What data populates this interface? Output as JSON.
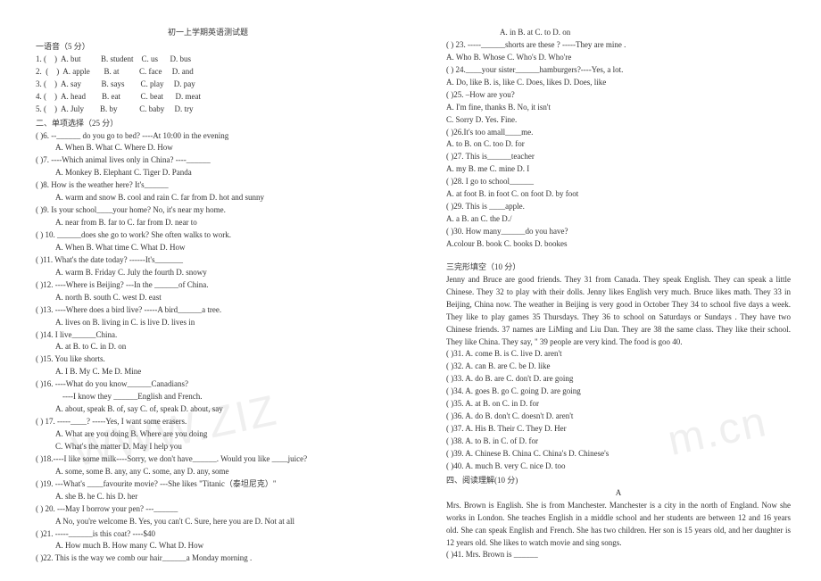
{
  "title": "初一上学期英语测试题",
  "sec1_header": "一语音（5 分）",
  "sec1": [
    "1. (    )  A. but          B. student    C. us      D. bus",
    "2.  (    )  A. apple       B. at          C. face     D. and",
    "3. (    )  A. say          B. says        C. play     D. pay",
    "4. (    )  A. head        B. eat          C. beat      D. meat",
    "5. (    )  A. July        B. by           C. baby     D. try"
  ],
  "sec2_header": "二、单项选择（25 分）",
  "sec2": [
    {
      "q": "(    )6. --______ do you go to bed? ----At 10:00 in the evening",
      "o": "A. When    B. What    C. Where    D. How"
    },
    {
      "q": "(    )7. ----Which animal lives only in China? ----______",
      "o": "A. Monkey    B. Elephant    C. Tiger    D. Panda"
    },
    {
      "q": "(    )8. How is the weather here? It's______",
      "o": "A. warm and snow    B. cool and rain    C. far from    D. hot and sunny"
    },
    {
      "q": "(    )9. Is your school____your home? No, it's near my home.",
      "o": "A. near from    B. far to    C. far from    D. near to"
    },
    {
      "q": "(    ) 10. ______does she go to work?    She often walks to work.",
      "o": "A. When    B. What time    C. What    D. How"
    },
    {
      "q": "(    )11. What's the date today? ------It's_______",
      "o": "A. warm    B. Friday    C. July the fourth    D. snowy"
    },
    {
      "q": "(    )12. ----Where is Beijing? ---In the ______of China.",
      "o": "A. north    B. south    C. west    D. east"
    },
    {
      "q": "(    )13. ----Where does a bird live? -----A bird______a tree.",
      "o": "A. lives    on    B. living in    C. is live    D. lives in"
    },
    {
      "q": "(    )14. I live______China.",
      "o": "A. at    B. to    C. in    D. on"
    },
    {
      "q": "(    )15. You like shorts.",
      "o": "A. I    B. My    C. Me    D. Mine"
    },
    {
      "q": "(    )16. ----What do you know______Canadians?",
      "m": "----I know they ______English and French.",
      "o": "A. about, speak    B. of, say    C. of, speak    D. about, say"
    },
    {
      "q": "(    ) 17. -----____? -----Yes, I want some erasers.",
      "o1": "A. What are you doing       B. Where are you doing",
      "o2": "C. What's the matter       D. May I help you"
    },
    {
      "q": "(    )18.----I like some milk----Sorry, we don't have______. Would you like ____juice?",
      "o": "A. some, some    B. any, any    C. some, any    D. any, some"
    },
    {
      "q": "(    )19. ---What's ____favourite movie?  ---She likes \"Titanic（泰坦尼克）\"",
      "o": "A. she    B. he    C. his    D. her"
    },
    {
      "q": "(    ) 20. ---May I borrow your pen?  ---______",
      "o": "A No, you're welcome    B. Yes, you can't    C. Sure, here you are    D. Not at all"
    },
    {
      "q": "(    )21. -----______is this coat?    ----$40",
      "o": "A. How much    B. How many    C. What    D. How"
    },
    {
      "q": "(    )22. This is the way we comb our hair______a Monday morning ."
    }
  ],
  "col2_top": [
    {
      "o": "A. in        B. at        C. to        D. on"
    },
    {
      "q": "(      ) 23. -----______shorts are these ?       -----They are mine .",
      "o": "A. Who    B. Whose      C. Who's      D. Who're"
    },
    {
      "q": "(     ) 24.____your sister______hamburgers?----Yes, a lot.",
      "o": "A. Do, like    B. is, like    C. Does, likes    D. Does, like"
    },
    {
      "q": "(    )25.  –How are you?",
      "o1": "A. I'm fine, thanks    B. No, it isn't",
      "o2": "C. Sorry                   D. Yes. Fine."
    },
    {
      "q": "(    )26.It's too   amall____me.",
      "o": "A. to    B. on    C. too    D. for"
    },
    {
      "q": "(    )27. This is______teacher",
      "o": "A. my   B. me   C. mine   D. I"
    },
    {
      "q": "(    )28. I go to school______",
      "o": "A. at foot    B. in foot    C. on foot    D. by foot"
    },
    {
      "q": "(    )29. This is ____apple.",
      "o": "A. a   B. an    C. the   D./"
    },
    {
      "q": "(    )30. How many______do you have?",
      "o": "A.colour    B. book    C. books    D. bookes"
    }
  ],
  "sec3_header": "三完形填空（10 分）",
  "passage": "  Jenny and Bruce are good friends. They 31   from Canada. They speak English. They can speak a little Chinese. They 32   to play with their dolls. Jenny likes English very much. Bruce likes math. They   33   in Beijing, China now. The weather in Beijing is very good in October They   34 to school five days a week.   They like to play games   35   Thursdays. They   36   to school on Saturdays or   Sundays . They have two Chinese friends.   37 names are LiMing and Liu Dan. They are   38   the same class. They like their school. They like China. They say, \"  39 people are very kind. The food is goo    40.",
  "sec3_opts": [
    "(    )31. A. come    B. is    C. live    D. aren't",
    "(    )32. A. can    B. are    C. be    D. like",
    "(    )33. A. do    B. are    C. don't    D. are going",
    "(    )34. A. goes    B. go    C. going    D. are going",
    "(    )35. A. at    B. on    C. in    D. for",
    "(    )36. A. do    B. don't    C. doesn't    D. aren't",
    "(    )37. A. His    B. Their    C. They    D. Her",
    "(    )38. A. to    B. in    C. of    D. for",
    "(    )39. A. Chinese    B. China    C. China's    D. Chinese's",
    "(    )40. A. much    B. very    C. nice    D. too"
  ],
  "sec4_header": "四、阅读理解(10 分)",
  "sec4_title": "A",
  "sec4_passage": "    Mrs. Brown is English. She is from Manchester. Manchester is a city in the north of England. Now she works in London. She teaches English in a middle school and her students are between 12 and 16 years old. She can speak English and French. She has two children. Her son is 15 years old, and her daughter is 12 years old. She likes to watch movie and sing songs.",
  "sec4_q": "(      )41. Mrs. Brown is ______"
}
